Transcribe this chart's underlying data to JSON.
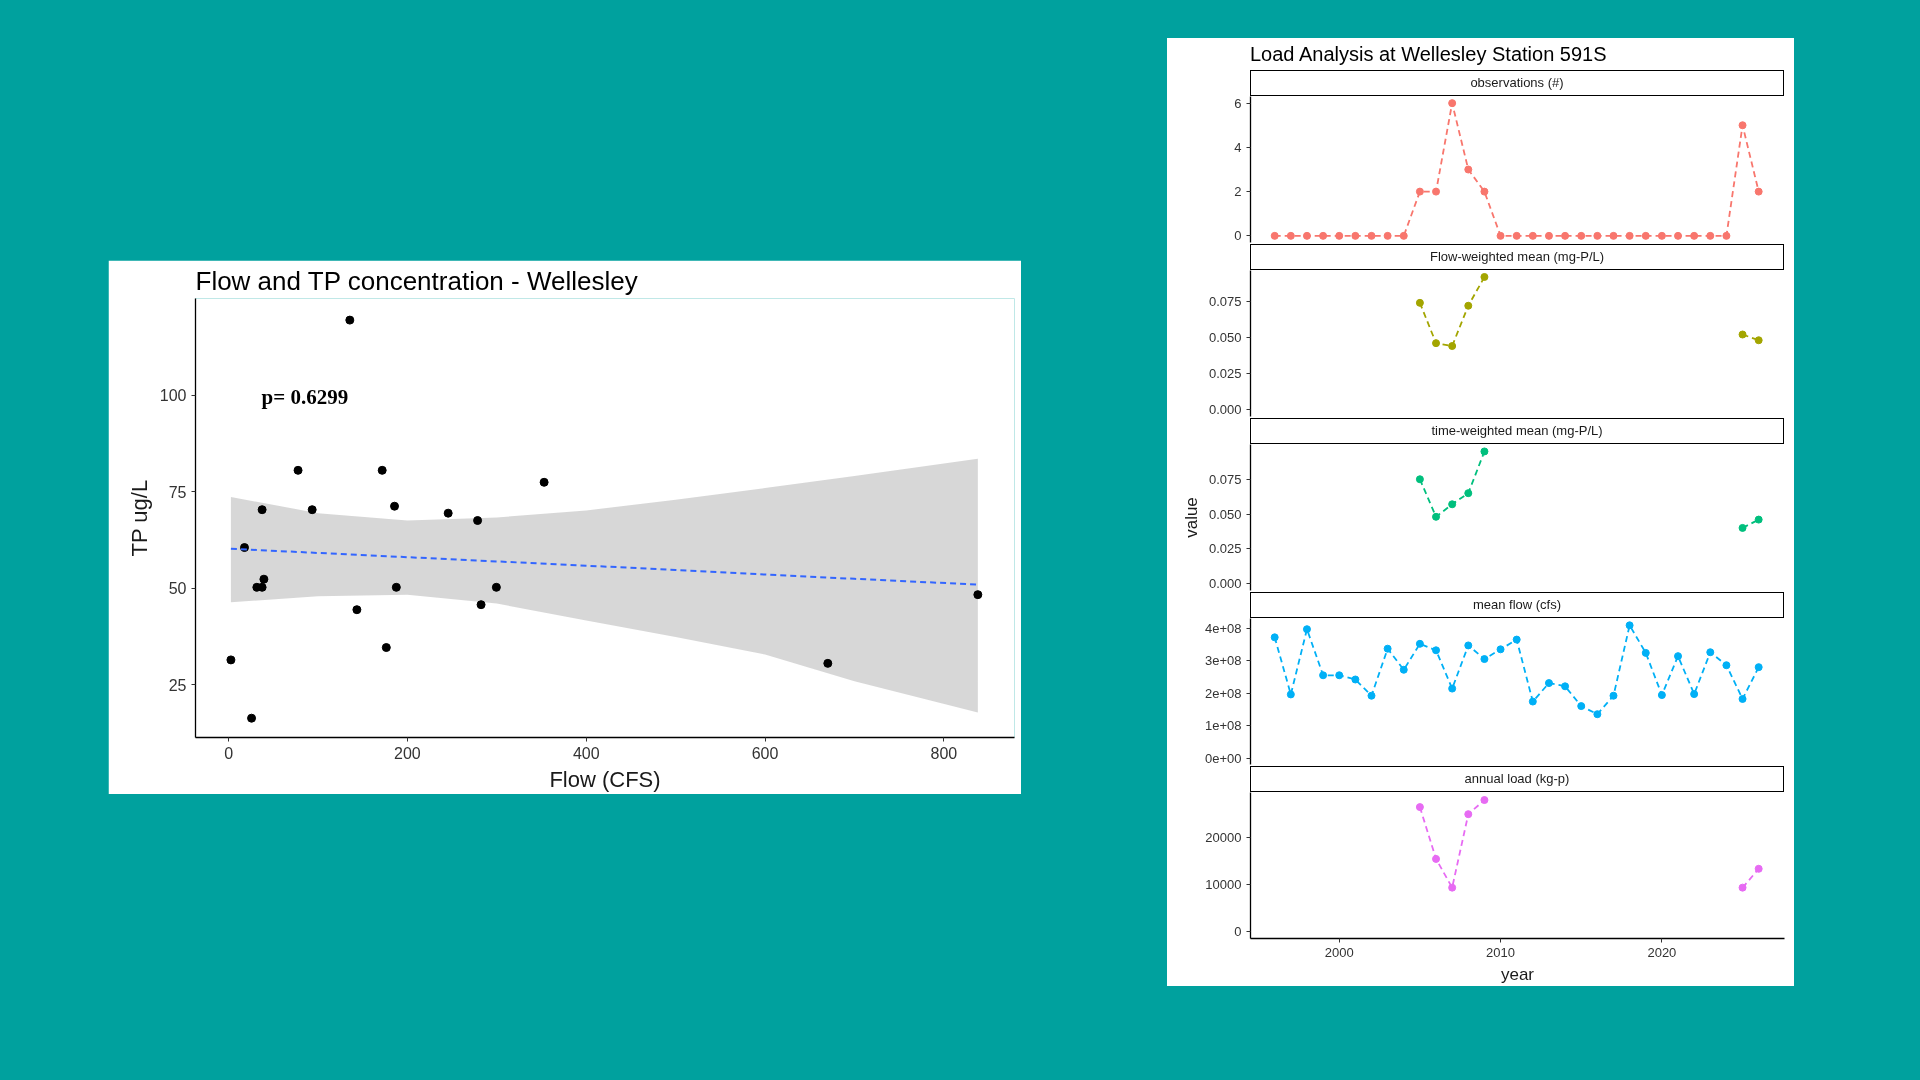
{
  "chart_data": [
    {
      "type": "scatter",
      "title": "Flow and TP concentration - Wellesley",
      "xlabel": "Flow (CFS)",
      "ylabel": "TP ug/L",
      "annotations": [
        "p= 0.6299"
      ],
      "xlim": [
        -37,
        879
      ],
      "ylim": [
        11.3,
        125
      ],
      "xticks": [
        0,
        200,
        400,
        600,
        800
      ],
      "yticks": [
        25,
        50,
        75,
        100
      ],
      "grid": false,
      "marker": "circle",
      "series": [
        {
          "color": "#000000",
          "x": [
            135.6,
            17.8,
            37.5,
            31.6,
            37.5,
            39.5,
            2.6,
            25.7,
            77.7,
            93.5,
            171.8,
            185.6,
            143.5,
            176.4,
            187.6,
            245.6,
            278.5,
            282.4,
            299.5,
            352.9,
            670.2,
            838
          ],
          "values": [
            119.4,
            60.5,
            70.3,
            50.2,
            50.2,
            52.3,
            31.4,
            16.3,
            80.5,
            70.3,
            80.5,
            71.2,
            44.4,
            34.6,
            50.2,
            69.4,
            67.5,
            45.7,
            50.2,
            77.4,
            30.5,
            48.3
          ]
        },
        {
          "type": "line",
          "color": "#3366ff",
          "line_style": "dashed",
          "marker": "none",
          "x": [
            2.6,
            100,
            200,
            300,
            400,
            500,
            600,
            700,
            838
          ],
          "values": [
            60.2,
            59.1,
            58.0,
            56.9,
            55.8,
            54.7,
            53.5,
            52.4,
            50.9
          ],
          "lower": [
            46.3,
            47.9,
            48.3,
            46.0,
            41.6,
            37.3,
            32.8,
            25.9,
            17.8
          ],
          "upper": [
            73.6,
            69.4,
            67.5,
            68.3,
            70.1,
            72.9,
            75.9,
            79.0,
            83.5
          ]
        }
      ]
    },
    {
      "type": "line",
      "title": "Load Analysis at Wellesley Station 591S",
      "subtitle": "observations (#)",
      "categories": [
        null,
        null,
        null,
        null,
        null,
        null,
        null,
        null,
        null,
        null,
        null,
        null,
        null,
        null,
        null,
        null,
        null,
        null,
        null,
        null,
        null,
        null,
        null,
        null,
        null,
        null,
        null,
        null,
        null,
        null,
        null
      ],
      "ylim": [
        -0.3,
        6.3
      ],
      "yticks": [
        0,
        2,
        4,
        6
      ],
      "tick_labels": "y",
      "grid": false,
      "marker": "circle",
      "line_style": "dashed",
      "series": [
        {
          "color": "#f8766d",
          "values": [
            0,
            0,
            0,
            0,
            0,
            0,
            0,
            0,
            0,
            2,
            2,
            6,
            3,
            2,
            0,
            0,
            0,
            0,
            0,
            0,
            0,
            0,
            0,
            0,
            0,
            0,
            0,
            0,
            0,
            5,
            2
          ]
        }
      ]
    },
    {
      "type": "line",
      "subtitle": "Flow-weighted mean (mg-P/L)",
      "categories": [
        null,
        null,
        null,
        null,
        null,
        null,
        null,
        null,
        null,
        null,
        null,
        null,
        null,
        null,
        null,
        null,
        null,
        null,
        null,
        null,
        null,
        null,
        null,
        null,
        null,
        null,
        null,
        null,
        null,
        null,
        null
      ],
      "ylim": [
        -0.005,
        0.0965
      ],
      "yticks": [
        {
          "value": 0,
          "label": "0.000"
        },
        {
          "value": 0.025,
          "label": "0.025"
        },
        {
          "value": 0.05,
          "label": "0.050"
        },
        {
          "value": 0.075,
          "label": "0.075"
        }
      ],
      "tick_labels": "y",
      "grid": false,
      "marker": "circle",
      "line_style": "dashed",
      "series": [
        {
          "color": "#a3a500",
          "values": [
            null,
            null,
            null,
            null,
            null,
            null,
            null,
            null,
            null,
            0.074,
            0.046,
            0.044,
            0.072,
            0.092,
            null,
            null,
            null,
            null,
            null,
            null,
            null,
            null,
            null,
            null,
            null,
            null,
            null,
            null,
            null,
            0.052,
            0.048
          ]
        }
      ]
    },
    {
      "type": "line",
      "subtitle": "time-weighted mean (mg-P/L)",
      "ylabel": "value",
      "categories": [
        null,
        null,
        null,
        null,
        null,
        null,
        null,
        null,
        null,
        null,
        null,
        null,
        null,
        null,
        null,
        null,
        null,
        null,
        null,
        null,
        null,
        null,
        null,
        null,
        null,
        null,
        null,
        null,
        null,
        null,
        null
      ],
      "ylim": [
        -0.005,
        0.1
      ],
      "yticks": [
        {
          "value": 0,
          "label": "0.000"
        },
        {
          "value": 0.025,
          "label": "0.025"
        },
        {
          "value": 0.05,
          "label": "0.050"
        },
        {
          "value": 0.075,
          "label": "0.075"
        }
      ],
      "tick_labels": "y",
      "grid": false,
      "marker": "circle",
      "line_style": "dashed",
      "series": [
        {
          "color": "#00bf7d",
          "values": [
            null,
            null,
            null,
            null,
            null,
            null,
            null,
            null,
            null,
            0.075,
            0.048,
            0.057,
            0.065,
            0.095,
            null,
            null,
            null,
            null,
            null,
            null,
            null,
            null,
            null,
            null,
            null,
            null,
            null,
            null,
            null,
            0.04,
            0.046
          ]
        }
      ]
    },
    {
      "type": "line",
      "subtitle": "mean flow (cfs)",
      "categories": [
        null,
        null,
        null,
        null,
        null,
        null,
        null,
        null,
        null,
        null,
        null,
        null,
        null,
        null,
        null,
        null,
        null,
        null,
        null,
        null,
        null,
        null,
        null,
        null,
        null,
        null,
        null,
        null,
        null,
        null,
        null
      ],
      "ylim": [
        -20000000,
        430000000
      ],
      "yticks": [
        {
          "value": 0,
          "label": "0e+00"
        },
        {
          "value": 100000000,
          "label": "1e+08"
        },
        {
          "value": 200000000,
          "label": "2e+08"
        },
        {
          "value": 300000000,
          "label": "3e+08"
        },
        {
          "value": 400000000,
          "label": "4e+08"
        }
      ],
      "tick_labels": "y",
      "grid": false,
      "marker": "circle",
      "line_style": "dashed",
      "series": [
        {
          "color": "#00b0f6",
          "values": [
            372000000,
            196000000,
            397000000,
            255000000,
            255000000,
            242000000,
            192000000,
            337000000,
            272000000,
            352000000,
            332000000,
            214000000,
            347000000,
            305000000,
            335000000,
            365000000,
            174000000,
            231000000,
            221000000,
            160000000,
            135000000,
            192000000,
            409000000,
            324000000,
            194000000,
            314000000,
            197000000,
            326000000,
            286000000,
            182000000,
            280000000
          ]
        }
      ]
    },
    {
      "type": "line",
      "subtitle": "annual load (kg-p)",
      "xlabel": "year",
      "categories": [
        null,
        null,
        null,
        null,
        "2000",
        null,
        null,
        null,
        null,
        null,
        null,
        null,
        null,
        null,
        "2010",
        null,
        null,
        null,
        null,
        null,
        null,
        null,
        null,
        null,
        "2020",
        null,
        null,
        null,
        null,
        null,
        null
      ],
      "ylim": [
        -1500,
        29500
      ],
      "yticks": [
        0,
        10000,
        20000
      ],
      "grid": false,
      "marker": "circle",
      "line_style": "dashed",
      "series": [
        {
          "color": "#e76bf3",
          "values": [
            null,
            null,
            null,
            null,
            null,
            null,
            null,
            null,
            null,
            26400,
            15400,
            9300,
            24900,
            27900,
            null,
            null,
            null,
            null,
            null,
            null,
            null,
            null,
            null,
            null,
            null,
            null,
            null,
            null,
            null,
            9300,
            13300
          ]
        }
      ]
    }
  ]
}
